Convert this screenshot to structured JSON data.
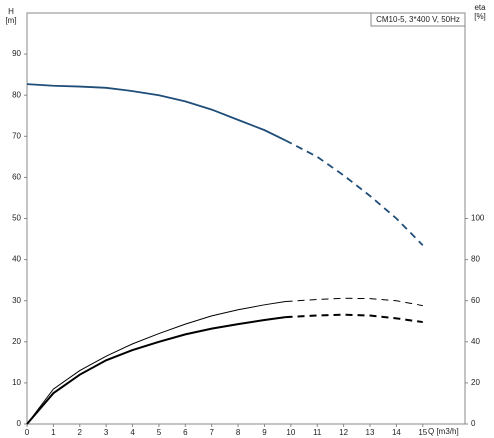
{
  "chart_data": {
    "type": "line",
    "title": "CM10-5, 3*400 V, 50Hz",
    "ylabel": [
      "H",
      "[m]"
    ],
    "y2label": [
      "eta",
      "[%]"
    ],
    "xlabel": "Q [m3/h]",
    "x": [
      0,
      1,
      2,
      3,
      4,
      5,
      6,
      7,
      8,
      9,
      9.8,
      11,
      12,
      13,
      14,
      15
    ],
    "xlim": [
      0,
      16.6
    ],
    "xticks": [
      0,
      1,
      2,
      3,
      4,
      5,
      6,
      7,
      8,
      9,
      10,
      11,
      12,
      13,
      14,
      15
    ],
    "ylim": [
      0,
      100
    ],
    "yticks": [
      0,
      10,
      20,
      30,
      40,
      50,
      60,
      70,
      80,
      90
    ],
    "y2lim": [
      0,
      200
    ],
    "y2ticks": [
      0,
      20,
      40,
      60,
      80,
      100
    ],
    "series": [
      {
        "color": "#1f4e79",
        "width": 1.8,
        "dash": false,
        "values": [
          82.7,
          82.3,
          82.1,
          81.8,
          81,
          80,
          78.5,
          76.5,
          74,
          71.5,
          69,
          null,
          null,
          null,
          null,
          null
        ]
      },
      {
        "color": "#1f4e79",
        "width": 1.8,
        "dash": true,
        "values": [
          null,
          null,
          null,
          null,
          null,
          null,
          null,
          null,
          null,
          null,
          69,
          65,
          60.5,
          55.5,
          50,
          43.5
        ]
      },
      {
        "color": "#000000",
        "width": 1,
        "dash": false,
        "axis": "y2",
        "values": [
          0,
          17,
          26,
          33,
          39,
          44,
          48.6,
          52.6,
          55.6,
          58,
          59.6,
          null,
          null,
          null,
          null,
          null
        ]
      },
      {
        "color": "#000000",
        "width": 1,
        "dash": true,
        "axis": "y2",
        "values": [
          null,
          null,
          null,
          null,
          null,
          null,
          null,
          null,
          null,
          null,
          59.6,
          60.6,
          61.2,
          61,
          60,
          57.6
        ]
      },
      {
        "color": "#000000",
        "width": 2,
        "dash": false,
        "axis": "y2",
        "values": [
          0,
          15,
          24,
          31,
          36,
          40,
          43.6,
          46.4,
          48.6,
          50.6,
          52,
          null,
          null,
          null,
          null,
          null
        ]
      },
      {
        "color": "#000000",
        "width": 2,
        "dash": true,
        "axis": "y2",
        "values": [
          null,
          null,
          null,
          null,
          null,
          null,
          null,
          null,
          null,
          null,
          52,
          52.8,
          53.2,
          52.8,
          51.4,
          49.6
        ]
      }
    ]
  }
}
